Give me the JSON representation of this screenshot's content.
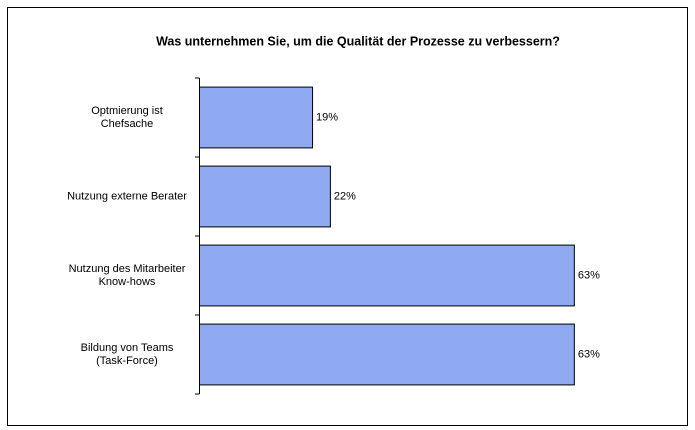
{
  "chart_data": {
    "type": "barh",
    "title": "Was unternehmen Sie, um die Qualität der Prozesse zu verbessern?",
    "categories": [
      "Optmierung ist\nChefsache",
      "Nutzung externe Berater",
      "Nutzung des Mitarbeiter\nKnow-hows",
      "Bildung von Teams\n(Task-Force)"
    ],
    "values": [
      19,
      22,
      63,
      63
    ],
    "value_labels": [
      "19%",
      "22%",
      "63%",
      "63%"
    ],
    "color": "#8faaf0"
  }
}
